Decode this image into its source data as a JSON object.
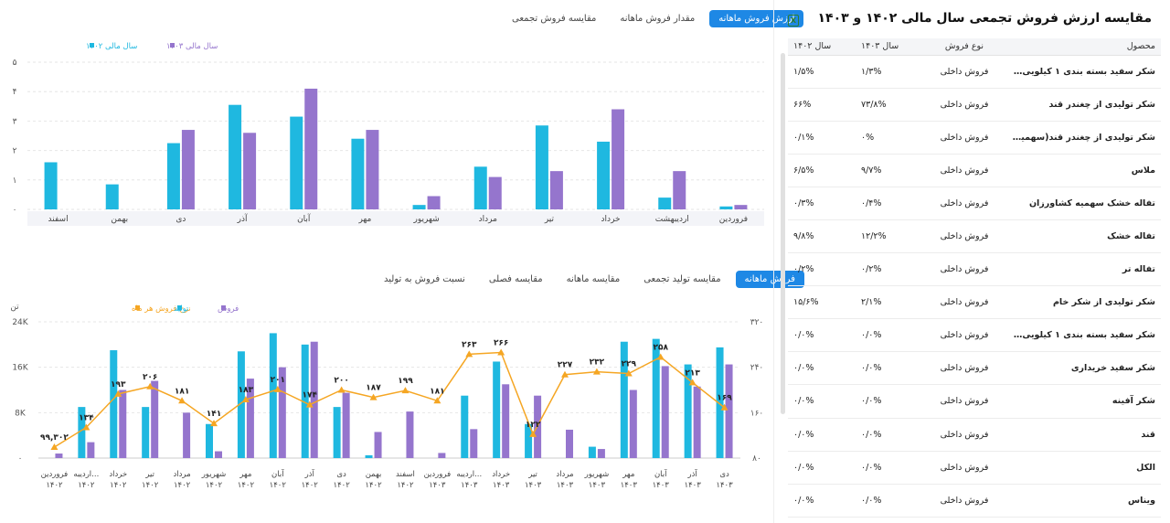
{
  "top_tabs": [
    "ارزش فروش ماهانه",
    "مقدار فروش ماهانه",
    "مقایسه فروش تجمعی"
  ],
  "top_active": 0,
  "bottom_tabs": [
    "فروش ماهانه",
    "مقایسه تولید تجمعی",
    "مقایسه ماهانه",
    "مقایسه فصلی",
    "نسبت فروش به تولید"
  ],
  "bottom_active": 0,
  "panel_title": "مقایسه ارزش فروش تجمعی سال مالی ۱۴۰۲ و ۱۴۰۳",
  "excel_icon": "excel-export-icon",
  "table": {
    "headers": [
      "محصول",
      "نوع فروش",
      "سال ۱۴۰۳",
      "سال ۱۴۰۲"
    ],
    "rows": [
      [
        "شکر سفید بسته بندی ۱ کیلویی کا...",
        "فروش داخلی",
        "۱/۳%",
        "۱/۵%"
      ],
      [
        "شکر تولیدی از چغندر قند",
        "فروش داخلی",
        "۷۳/۸%",
        "۶۶%"
      ],
      [
        "شکر تولیدی از چغندر قند(سهمیه ...",
        "فروش داخلی",
        "۰%",
        "۰/۱%"
      ],
      [
        "ملاس",
        "فروش داخلی",
        "۹/۷%",
        "۶/۵%"
      ],
      [
        "تفاله خشک سهمیه کشاورزان",
        "فروش داخلی",
        "۰/۴%",
        "۰/۳%"
      ],
      [
        "تفاله خشک",
        "فروش داخلی",
        "۱۲/۲%",
        "۹/۸%"
      ],
      [
        "تفاله تر",
        "فروش داخلی",
        "۰/۲%",
        "۰/۲%"
      ],
      [
        "شکر تولیدی از شکر خام",
        "فروش داخلی",
        "۲/۱%",
        "۱۵/۶%"
      ],
      [
        "شکر سفید بسته بندی ۱ کیلویی دول...",
        "فروش داخلی",
        "۰/۰%",
        "۰/۰%"
      ],
      [
        "شکر سفید خریداری",
        "فروش داخلی",
        "۰/۰%",
        "۰/۰%"
      ],
      [
        "شکر آفینه",
        "فروش داخلی",
        "۰/۰%",
        "۰/۰%"
      ],
      [
        "قند",
        "فروش داخلی",
        "۰/۰%",
        "۰/۰%"
      ],
      [
        "الکل",
        "فروش داخلی",
        "۰/۰%",
        "۰/۰%"
      ],
      [
        "ویناس",
        "فروش داخلی",
        "۰/۰%",
        "۰/۰%"
      ]
    ]
  },
  "colors": {
    "cyan": "#1fb8e0",
    "purple": "#9575cd",
    "orange": "#f5a623",
    "accent": "#1e88e5"
  },
  "chart_data": [
    {
      "type": "bar",
      "legend": [
        "سال مالی ۱۴۰۳",
        "سال مالی ۱۴۰۲"
      ],
      "categories": [
        "فروردین",
        "اردیبهشت",
        "خرداد",
        "تیر",
        "مرداد",
        "شهریور",
        "مهر",
        "آبان",
        "آذر",
        "دی",
        "بهمن",
        "اسفند"
      ],
      "y_ticks": [
        "۰",
        "۱",
        "۲",
        "۳",
        "۴",
        "۵"
      ],
      "ylim": [
        0,
        5
      ],
      "series": [
        {
          "name": "سال مالی ۱۴۰۳",
          "color": "#9575cd",
          "values": [
            0.15,
            1.3,
            3.4,
            1.3,
            1.1,
            0.45,
            2.7,
            4.1,
            2.6,
            2.7,
            null,
            null
          ]
        },
        {
          "name": "سال مالی ۱۴۰۲",
          "color": "#1fb8e0",
          "values": [
            0.1,
            0.4,
            2.3,
            2.85,
            1.45,
            0.15,
            2.4,
            3.15,
            3.55,
            2.25,
            0.85,
            1.6
          ]
        }
      ]
    },
    {
      "type": "bar",
      "y_left_unit": "تن",
      "y_left_ticks": [
        "۰",
        "8K",
        "16K",
        "24K"
      ],
      "ylim_left": [
        0,
        24000
      ],
      "y_right_ticks": [
        "۸۰",
        "۱۶۰",
        "۲۴۰",
        "۳۲۰"
      ],
      "ylim_right": [
        80,
        320
      ],
      "legend": [
        "نرخ فروش هر ماه",
        "تولید",
        "فروش"
      ],
      "categories": [
        [
          "فروردین",
          "۱۴۰۲"
        ],
        [
          "اردیبه...",
          "۱۴۰۲"
        ],
        [
          "خرداد",
          "۱۴۰۲"
        ],
        [
          "تیر",
          "۱۴۰۲"
        ],
        [
          "مرداد",
          "۱۴۰۲"
        ],
        [
          "شهریور",
          "۱۴۰۲"
        ],
        [
          "مهر",
          "۱۴۰۲"
        ],
        [
          "آبان",
          "۱۴۰۲"
        ],
        [
          "آذر",
          "۱۴۰۲"
        ],
        [
          "دی",
          "۱۴۰۲"
        ],
        [
          "بهمن",
          "۱۴۰۲"
        ],
        [
          "اسفند",
          "۱۴۰۲"
        ],
        [
          "فروردین",
          "۱۴۰۳"
        ],
        [
          "اردیبه...",
          "۱۴۰۳"
        ],
        [
          "خرداد",
          "۱۴۰۳"
        ],
        [
          "تیر",
          "۱۴۰۳"
        ],
        [
          "مرداد",
          "۱۴۰۳"
        ],
        [
          "شهریور",
          "۱۴۰۳"
        ],
        [
          "مهر",
          "۱۴۰۳"
        ],
        [
          "آبان",
          "۱۴۰۳"
        ],
        [
          "آذر",
          "۱۴۰۳"
        ],
        [
          "دی",
          "۱۴۰۳"
        ]
      ],
      "series": [
        {
          "name": "تولید",
          "color": "#1fb8e0",
          "values": [
            0,
            9000,
            19000,
            9000,
            0,
            6000,
            18800,
            22000,
            20000,
            9000,
            500,
            0,
            0,
            11000,
            17000,
            6000,
            0,
            2000,
            20500,
            21000,
            16500,
            19500
          ]
        },
        {
          "name": "فروش",
          "color": "#9575cd",
          "values": [
            800,
            2800,
            12000,
            13600,
            8000,
            1200,
            14000,
            16000,
            20500,
            11500,
            4600,
            8200,
            900,
            5100,
            13000,
            11000,
            5000,
            1600,
            12000,
            16200,
            12600,
            16500
          ]
        },
        {
          "name": "نرخ فروش هر ماه",
          "color": "#f5a623",
          "values": [
            99.302,
            134,
            193,
            206,
            181,
            141,
            183,
            201,
            174,
            200,
            187,
            199,
            181,
            263,
            266,
            122,
            227,
            232,
            229,
            258,
            213,
            169
          ],
          "labels": [
            "۹۹,۳۰۲",
            "۱۳۴",
            "۱۹۳",
            "۲۰۶",
            "۱۸۱",
            "۱۴۱",
            "۱۸۳",
            "۲۰۱",
            "۱۷۴",
            "۲۰۰",
            "۱۸۷",
            "۱۹۹",
            "۱۸۱",
            "۲۶۳",
            "۲۶۶",
            "۱۲۲",
            "۲۲۷",
            "۲۳۲",
            "۲۲۹",
            "۲۵۸",
            "۲۱۳",
            "۱۶۹"
          ]
        }
      ]
    }
  ]
}
